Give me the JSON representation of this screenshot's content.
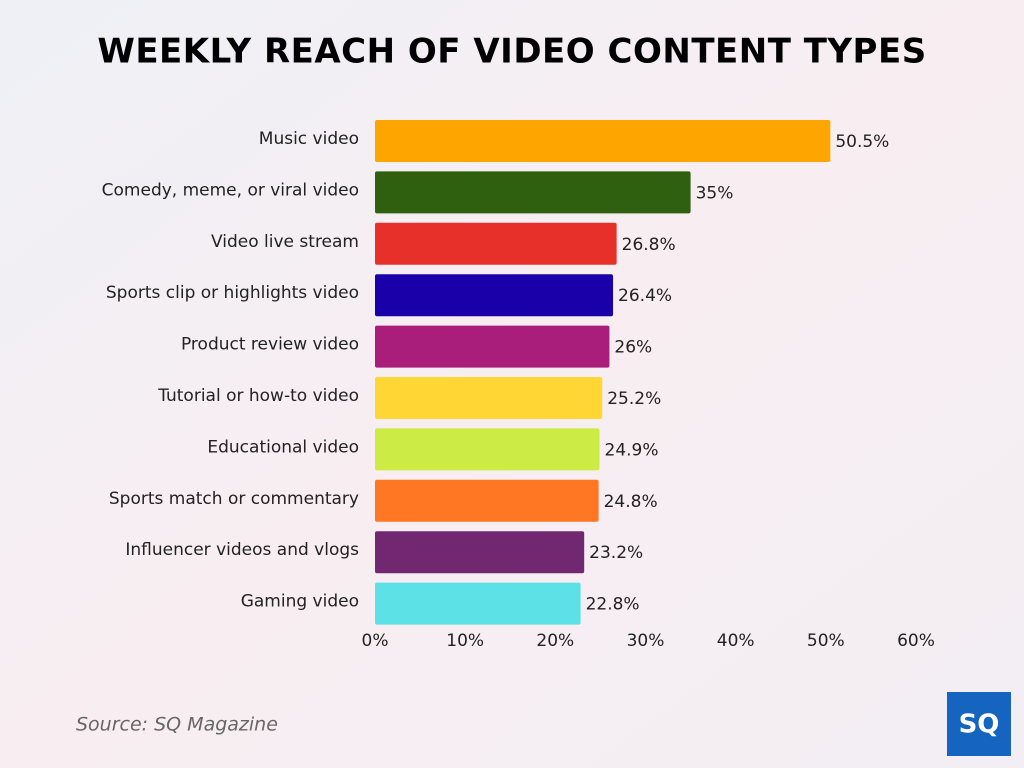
{
  "chart_data": {
    "type": "bar",
    "orientation": "horizontal",
    "title": "WEEKLY REACH OF VIDEO CONTENT TYPES",
    "categories": [
      "Music video",
      "Comedy, meme, or viral video",
      "Video live stream",
      "Sports clip or highlights video",
      "Product review video",
      "Tutorial or how-to video",
      "Educational video",
      "Sports match or commentary",
      "Influencer videos and vlogs",
      "Gaming video"
    ],
    "values": [
      50.5,
      35,
      26.8,
      26.4,
      26,
      25.2,
      24.9,
      24.8,
      23.2,
      22.8
    ],
    "value_labels": [
      "50.5%",
      "35%",
      "26.8%",
      "26.4%",
      "26%",
      "25.2%",
      "24.9%",
      "24.8%",
      "23.2%",
      "22.8%"
    ],
    "colors": [
      "#ffa500",
      "#2e6010",
      "#e8302a",
      "#1a00a8",
      "#a81e7a",
      "#ffd633",
      "#ccec45",
      "#ff7722",
      "#722870",
      "#5ce1e6"
    ],
    "xlim": [
      0,
      60
    ],
    "xticks": [
      {
        "value": 0,
        "label": "0%"
      },
      {
        "value": 10,
        "label": "10%"
      },
      {
        "value": 20,
        "label": "20%"
      },
      {
        "value": 30,
        "label": "30%"
      },
      {
        "value": 40,
        "label": "40%"
      },
      {
        "value": 50,
        "label": "50%"
      },
      {
        "value": 60,
        "label": "60%"
      }
    ],
    "grid": false,
    "source": "Source: SQ Magazine",
    "logo": "SQ"
  }
}
